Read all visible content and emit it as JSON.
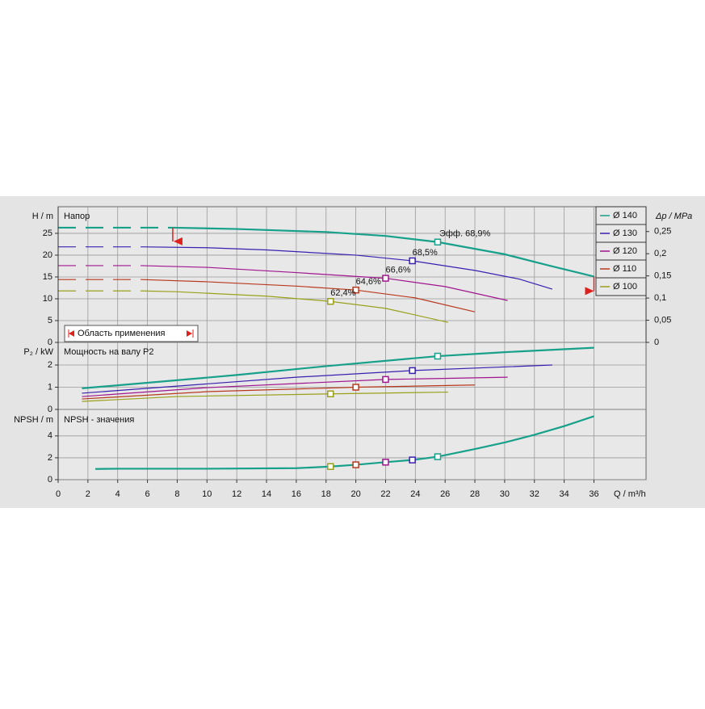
{
  "chart_data": [
    {
      "type": "line",
      "title": "Напор",
      "ylabel": "H / m",
      "y2label": "Δp / MPa",
      "xlim": [
        0,
        39.5
      ],
      "ylim": [
        0,
        31.1
      ],
      "yticks": [
        0,
        5,
        10,
        15,
        20,
        25
      ],
      "y2lim": [
        0,
        0.306
      ],
      "y2ticks": [
        0,
        {
          "value": 0.05,
          "label": "0,05"
        },
        {
          "value": 0.1,
          "label": "0,1"
        },
        {
          "value": 0.15,
          "label": "0,15"
        },
        {
          "value": 0.2,
          "label": "0,2"
        },
        {
          "value": 0.25,
          "label": "0,25"
        }
      ],
      "grid": true,
      "legend": "upper right",
      "application_range": {
        "label": "Область применения",
        "x": [
          7.7,
          36
        ],
        "color": "#e0201a"
      },
      "series": [
        {
          "name": "Ø 140",
          "color": "#17a08a",
          "x": [
            7.7,
            12,
            18,
            22,
            25.5,
            30,
            33,
            36
          ],
          "values": [
            26.3,
            26,
            25.3,
            24.4,
            23,
            20.2,
            17.6,
            15.1
          ],
          "dashed": {
            "x": [
              0,
              7.7
            ],
            "values": [
              26.3,
              26.3
            ]
          },
          "duty": {
            "x": 25.5,
            "value": 23,
            "label": "Эфф.  68,9%"
          }
        },
        {
          "name": "Ø 130",
          "color": "#3a1fb0",
          "x": [
            5.6,
            10,
            14,
            20,
            23.8,
            28,
            31,
            33.2
          ],
          "values": [
            21.9,
            21.7,
            21.2,
            20,
            18.7,
            16.5,
            14.5,
            12.2
          ],
          "dashed": {
            "x": [
              0,
              5.6
            ],
            "values": [
              21.9,
              21.9
            ]
          },
          "duty": {
            "x": 23.8,
            "value": 18.7,
            "label": "68,5%"
          }
        },
        {
          "name": "Ø 120",
          "color": "#a0158f",
          "x": [
            5.6,
            10,
            16,
            22,
            26,
            30.2
          ],
          "values": [
            17.6,
            17.2,
            16,
            14.7,
            12.8,
            9.6
          ],
          "dashed": {
            "x": [
              0,
              5.6
            ],
            "values": [
              17.6,
              17.6
            ]
          },
          "duty": {
            "x": 22,
            "value": 14.7,
            "label": "66,6%"
          }
        },
        {
          "name": "Ø 110",
          "color": "#b83a1e",
          "x": [
            5.6,
            10,
            16,
            20,
            24,
            28
          ],
          "values": [
            14.4,
            13.9,
            12.9,
            12,
            10.2,
            7
          ],
          "dashed": {
            "x": [
              0,
              5.6
            ],
            "values": [
              14.4,
              14.4
            ]
          },
          "duty": {
            "x": 20,
            "value": 12,
            "label": "64,6%"
          }
        },
        {
          "name": "Ø 100",
          "color": "#9aa01a",
          "x": [
            5.6,
            8,
            14,
            18.3,
            22,
            26.2
          ],
          "values": [
            11.8,
            11.6,
            10.6,
            9.4,
            7.8,
            4.6
          ],
          "dashed": {
            "x": [
              0,
              5.6
            ],
            "values": [
              11.8,
              11.8
            ]
          },
          "duty": {
            "x": 18.3,
            "value": 9.4,
            "label": "62,4%"
          }
        }
      ]
    },
    {
      "type": "line",
      "title": "Мощность на валу P2",
      "ylabel": "P₂ / kW",
      "xlim": [
        0,
        39.5
      ],
      "ylim": [
        0,
        3.02
      ],
      "yticks": [
        0,
        1,
        2
      ],
      "grid": true,
      "series": [
        {
          "color": "#17a08a",
          "x": [
            1.6,
            6,
            12,
            18,
            25.5,
            30,
            36
          ],
          "values": [
            0.95,
            1.2,
            1.55,
            1.95,
            2.4,
            2.58,
            2.78
          ],
          "duty": {
            "x": 25.5,
            "value": 2.4
          }
        },
        {
          "color": "#3a1fb0",
          "x": [
            1.6,
            8,
            16,
            23.8,
            33.2
          ],
          "values": [
            0.73,
            1.05,
            1.45,
            1.75,
            2.0
          ],
          "duty": {
            "x": 23.8,
            "value": 1.75
          }
        },
        {
          "color": "#a0158f",
          "x": [
            1.6,
            10,
            22,
            30.2
          ],
          "values": [
            0.58,
            0.98,
            1.35,
            1.45
          ],
          "duty": {
            "x": 22,
            "value": 1.35
          }
        },
        {
          "color": "#b83a1e",
          "x": [
            1.6,
            10,
            20,
            28
          ],
          "values": [
            0.47,
            0.8,
            1.0,
            1.1
          ],
          "duty": {
            "x": 20,
            "value": 1.0
          }
        },
        {
          "color": "#9aa01a",
          "x": [
            1.6,
            8,
            18.3,
            26.2
          ],
          "values": [
            0.36,
            0.58,
            0.7,
            0.78
          ],
          "duty": {
            "x": 18.3,
            "value": 0.7
          }
        }
      ]
    },
    {
      "type": "line",
      "title": "NPSH - значения",
      "ylabel": "NPSH / m",
      "xlabel": "Q / m³/h",
      "xlim": [
        0,
        39.5
      ],
      "ylim": [
        0,
        6.35
      ],
      "yticks": [
        0,
        2,
        4
      ],
      "grid": true,
      "xticks": [
        0,
        2,
        4,
        6,
        8,
        10,
        12,
        14,
        16,
        18,
        20,
        22,
        24,
        26,
        28,
        30,
        32,
        34,
        36
      ],
      "series": [
        {
          "color": "#17a08a",
          "x": [
            2.5,
            4,
            10,
            16,
            18.3,
            20,
            22,
            23.8,
            25.5,
            28,
            30,
            32,
            34,
            36
          ],
          "values": [
            0.98,
            1.0,
            1.0,
            1.05,
            1.2,
            1.36,
            1.6,
            1.8,
            2.1,
            2.8,
            3.4,
            4.1,
            4.9,
            5.8
          ]
        }
      ],
      "points": [
        {
          "x": 18.3,
          "value": 1.2,
          "color": "#9aa01a"
        },
        {
          "x": 20,
          "value": 1.36,
          "color": "#b83a1e"
        },
        {
          "x": 22,
          "value": 1.6,
          "color": "#a0158f"
        },
        {
          "x": 23.8,
          "value": 1.8,
          "color": "#3a1fb0"
        },
        {
          "x": 25.5,
          "value": 2.1,
          "color": "#17a08a"
        }
      ]
    }
  ]
}
